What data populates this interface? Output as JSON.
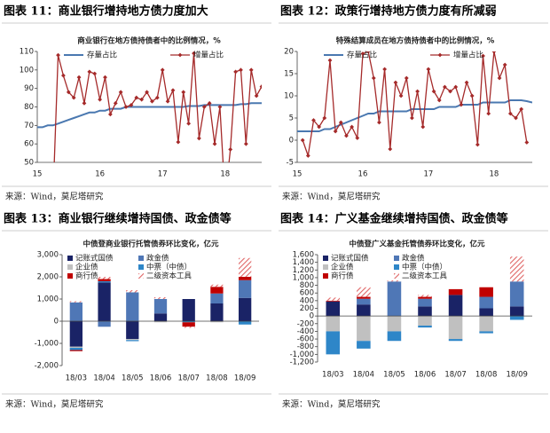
{
  "panels": [
    {
      "heading": "图表 11：商业银行增持地方债力度加大",
      "source": "来源：Wind，莫尼塔研究"
    },
    {
      "heading": "图表 12：政策行增持地方债力度有所减弱",
      "source": "来源：Wind，莫尼塔研究"
    },
    {
      "heading": "图表 13：商业银行继续增持国债、政金债等",
      "source": "来源：Wind，莫尼塔研究"
    },
    {
      "heading": "图表 14：广义基金继续增持国债、政金债等",
      "source": "来源：Wind，莫尼塔研究"
    }
  ],
  "chart_data": [
    {
      "type": "line",
      "title": "商业银行在地方债持债者中的比例情况，%",
      "categories": [
        "15",
        null,
        null,
        null,
        null,
        null,
        null,
        null,
        null,
        null,
        null,
        null,
        "16",
        null,
        null,
        null,
        null,
        null,
        null,
        null,
        null,
        null,
        null,
        null,
        "17",
        null,
        null,
        null,
        null,
        null,
        null,
        null,
        null,
        null,
        null,
        null,
        "18",
        null,
        null,
        null,
        null,
        null,
        null,
        null
      ],
      "series": [
        {
          "name": "存量占比",
          "color": "#4a78b0",
          "values": [
            69,
            69,
            70,
            70,
            71,
            72,
            73,
            74,
            75,
            76,
            77,
            77,
            78,
            78,
            79,
            79,
            79,
            80,
            80,
            80,
            80,
            80,
            80,
            80,
            80,
            80,
            80,
            80,
            80,
            80.5,
            80.5,
            80.5,
            81,
            81,
            81,
            81,
            81,
            81,
            81,
            81.5,
            81.5,
            82,
            82,
            82
          ]
        },
        {
          "name": "增量占比",
          "color": "#a52a2a",
          "marker": "diamond",
          "values": [
            null,
            null,
            null,
            30,
            108,
            97,
            88,
            85,
            96,
            82,
            99,
            98,
            84,
            96,
            76,
            82,
            88,
            80,
            81,
            85,
            84,
            88,
            83,
            85,
            100,
            83,
            89,
            61,
            88,
            71,
            109,
            63,
            80,
            82,
            60,
            80,
            30,
            57,
            99,
            100,
            60,
            100,
            86,
            91
          ]
        }
      ],
      "ylim": [
        50,
        110
      ],
      "yticks": [
        50,
        60,
        70,
        80,
        90,
        100,
        110
      ]
    },
    {
      "type": "line",
      "title": "特殊结算成员在地方债持债者中的比例情况，%",
      "categories": [
        "15",
        null,
        null,
        null,
        null,
        null,
        null,
        null,
        null,
        null,
        null,
        null,
        "16",
        null,
        null,
        null,
        null,
        null,
        null,
        null,
        null,
        null,
        null,
        null,
        "17",
        null,
        null,
        null,
        null,
        null,
        null,
        null,
        null,
        null,
        null,
        null,
        "18",
        null,
        null,
        null,
        null,
        null,
        null,
        null
      ],
      "series": [
        {
          "name": "存量占比",
          "color": "#4a78b0",
          "values": [
            2,
            2,
            2,
            2,
            2,
            2.5,
            2.5,
            3,
            3.5,
            4,
            4.5,
            5,
            5.5,
            6,
            6,
            6.5,
            6.5,
            6.5,
            6.5,
            6.5,
            6.5,
            7,
            7,
            7,
            7,
            7,
            7.5,
            7.5,
            7.5,
            7.5,
            8,
            8,
            8,
            8,
            8.5,
            8.5,
            8.5,
            8.5,
            8.5,
            9,
            9,
            9,
            8.8,
            8.5
          ]
        },
        {
          "name": "增量占比",
          "color": "#a52a2a",
          "marker": "diamond",
          "values": [
            null,
            0,
            -3.5,
            4.5,
            3,
            5,
            18,
            2,
            4,
            1,
            3,
            0.5,
            19.5,
            20,
            14,
            4,
            16,
            -2,
            13,
            10,
            14,
            5,
            11,
            3,
            16,
            11,
            9,
            12,
            11,
            12,
            8,
            13,
            10,
            -1,
            19,
            6,
            20,
            14,
            17,
            6,
            5,
            7,
            -0.5,
            null
          ]
        }
      ],
      "ylim": [
        -5,
        20
      ],
      "yticks": [
        -5,
        0,
        5,
        10,
        15,
        20
      ]
    },
    {
      "type": "bar",
      "stacked": true,
      "title": "中债登商业银行托管债券环比变化，亿元",
      "categories": [
        "18/03",
        "18/04",
        "18/05",
        "18/06",
        "18/07",
        "18/08",
        "18/09"
      ],
      "series": [
        {
          "name": "记账式国债",
          "color": "#1a2366",
          "values": [
            -1150,
            1750,
            -800,
            350,
            1000,
            800,
            1050
          ]
        },
        {
          "name": "政金债",
          "color": "#4f77b6",
          "values": [
            850,
            -250,
            1300,
            650,
            0,
            450,
            800
          ]
        },
        {
          "name": "企业债",
          "color": "#c0c0c0",
          "values": [
            -50,
            0,
            -50,
            -50,
            0,
            -50,
            0
          ]
        },
        {
          "name": "中票（中债）",
          "color": "#2e86c8",
          "values": [
            -100,
            50,
            -50,
            0,
            -50,
            0,
            -150
          ]
        },
        {
          "name": "商行债",
          "color": "#c00000",
          "values": [
            -50,
            100,
            0,
            0,
            -200,
            300,
            150
          ]
        },
        {
          "name": "二级资本工具",
          "color": "#e06666",
          "pattern": "hatch",
          "values": [
            50,
            100,
            100,
            80,
            -50,
            100,
            850
          ]
        }
      ],
      "ylim": [
        -2000,
        3000
      ],
      "yticks": [
        {
          "value": -2000,
          "label": "-2,000"
        },
        {
          "value": -1000,
          "label": "-1,000"
        },
        0,
        {
          "value": 1000,
          "label": "1,000"
        },
        {
          "value": 2000,
          "label": "2,000"
        },
        {
          "value": 3000,
          "label": "3,000"
        }
      ]
    },
    {
      "type": "bar",
      "stacked": true,
      "title": "中债登广义基金托管债券环比变化，亿元",
      "categories": [
        "18/03",
        "18/04",
        "18/05",
        "18/06",
        "18/07",
        "18/08",
        "18/09"
      ],
      "series": [
        {
          "name": "记账式国债",
          "color": "#1a2366",
          "values": [
            380,
            300,
            0,
            250,
            550,
            200,
            250
          ]
        },
        {
          "name": "政金债",
          "color": "#4f77b6",
          "values": [
            0,
            150,
            900,
            200,
            0,
            300,
            650
          ]
        },
        {
          "name": "企业债",
          "color": "#c0c0c0",
          "values": [
            -400,
            -650,
            -400,
            -250,
            -600,
            -400,
            0
          ]
        },
        {
          "name": "中票（中债）",
          "color": "#2e86c8",
          "values": [
            -600,
            -200,
            -250,
            -50,
            -50,
            -50,
            -100
          ]
        },
        {
          "name": "商行债",
          "color": "#c00000",
          "values": [
            20,
            50,
            0,
            50,
            150,
            250,
            0
          ]
        },
        {
          "name": "二级资本工具",
          "color": "#e06666",
          "pattern": "hatch",
          "values": [
            80,
            250,
            30,
            50,
            0,
            0,
            650
          ]
        }
      ],
      "ylim": [
        -1200,
        1600
      ],
      "yticks": [
        {
          "value": -1200,
          "label": "-1,200"
        },
        {
          "value": -1000,
          "label": "-1,000"
        },
        -800,
        -600,
        -400,
        -200,
        0,
        200,
        400,
        600,
        800,
        {
          "value": 1000,
          "label": "1,000"
        },
        {
          "value": 1200,
          "label": "1,200"
        },
        {
          "value": 1400,
          "label": "1,400"
        },
        {
          "value": 1600,
          "label": "1,600"
        }
      ]
    }
  ]
}
